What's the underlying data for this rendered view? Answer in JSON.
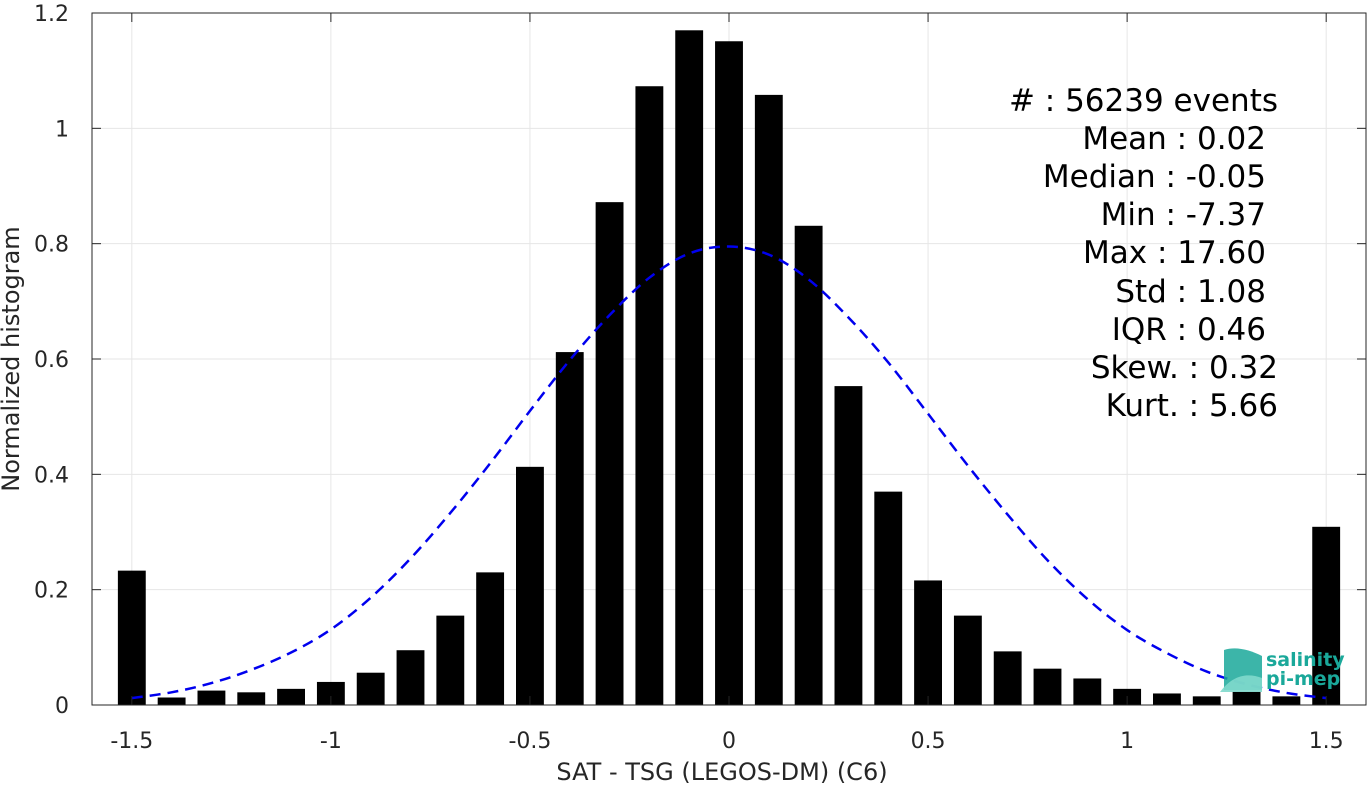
{
  "chart_data": {
    "type": "bar",
    "xlabel": "SAT - TSG (LEGOS-DM) (C6)",
    "ylabel": "Normalized histogram",
    "xlim": [
      -1.6,
      1.6
    ],
    "ylim": [
      0,
      1.2
    ],
    "xticks": [
      -1.5,
      -1,
      -0.5,
      0,
      0.5,
      1,
      1.5
    ],
    "xtick_labels": [
      "-1.5",
      "-1",
      "-0.5",
      "0",
      "0.5",
      "1",
      "1.5"
    ],
    "yticks": [
      0,
      0.2,
      0.4,
      0.6,
      0.8,
      1,
      1.2
    ],
    "ytick_labels": [
      "0",
      "0.2",
      "0.4",
      "0.6",
      "0.8",
      "1",
      "1.2"
    ],
    "grid": true,
    "bar_color": "#000000",
    "bar_width": 0.07,
    "x": [
      -1.5,
      -1.4,
      -1.3,
      -1.2,
      -1.1,
      -1.0,
      -0.9,
      -0.8,
      -0.7,
      -0.6,
      -0.5,
      -0.4,
      -0.3,
      -0.2,
      -0.1,
      0.0,
      0.1,
      0.2,
      0.3,
      0.4,
      0.5,
      0.6,
      0.7,
      0.8,
      0.9,
      1.0,
      1.1,
      1.2,
      1.3,
      1.4,
      1.5
    ],
    "values": [
      0.233,
      0.013,
      0.025,
      0.022,
      0.028,
      0.04,
      0.056,
      0.095,
      0.155,
      0.23,
      0.413,
      0.612,
      0.872,
      1.073,
      1.17,
      1.151,
      1.058,
      0.831,
      0.553,
      0.37,
      0.216,
      0.155,
      0.093,
      0.063,
      0.046,
      0.028,
      0.02,
      0.015,
      0.023,
      0.015,
      0.309
    ],
    "fit_curve": {
      "style": "dashed",
      "color": "#0000ee",
      "x": [
        -1.5,
        -1.4,
        -1.3,
        -1.2,
        -1.1,
        -1.0,
        -0.9,
        -0.8,
        -0.7,
        -0.6,
        -0.5,
        -0.4,
        -0.3,
        -0.2,
        -0.1,
        0.0,
        0.1,
        0.2,
        0.3,
        0.4,
        0.5,
        0.6,
        0.7,
        0.8,
        0.9,
        1.0,
        1.1,
        1.2,
        1.3,
        1.4,
        1.5
      ],
      "y": [
        0.012,
        0.022,
        0.038,
        0.061,
        0.091,
        0.131,
        0.186,
        0.254,
        0.333,
        0.419,
        0.51,
        0.598,
        0.676,
        0.741,
        0.783,
        0.795,
        0.781,
        0.738,
        0.672,
        0.594,
        0.505,
        0.415,
        0.33,
        0.251,
        0.184,
        0.13,
        0.09,
        0.058,
        0.036,
        0.021,
        0.012
      ]
    },
    "stats": [
      "#  : 56239 events",
      "Mean : 0.02",
      "Median : -0.05",
      "Min : -7.37",
      "Max : 17.60",
      "Std : 1.08",
      "IQR : 0.46",
      "Skew. : 0.32",
      "Kurt. : 5.66"
    ]
  },
  "logo": {
    "line1": "salinity",
    "line2": "pi-mep",
    "color": "#1aa89a"
  }
}
